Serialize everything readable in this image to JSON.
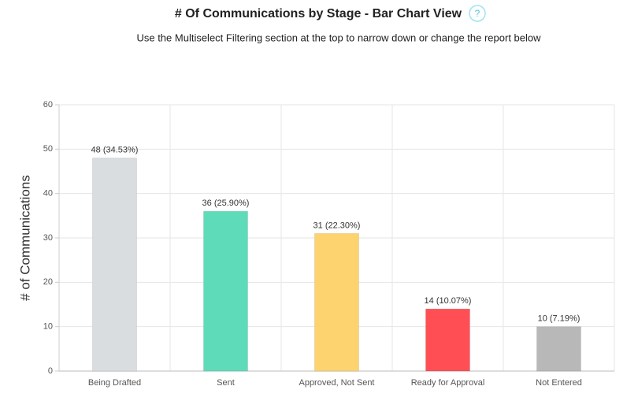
{
  "chart_data": {
    "type": "bar",
    "title": "# Of Communications by Stage - Bar Chart View",
    "subtitle": "Use the Multiselect Filtering section at the top to narrow down or change the report below",
    "y_label": "# of Communications",
    "categories": [
      "Being Drafted",
      "Sent",
      "Approved, Not Sent",
      "Ready for Approval",
      "Not Entered"
    ],
    "values": [
      48,
      36,
      31,
      14,
      10
    ],
    "value_labels": [
      "48 (34.53%)",
      "36 (25.90%)",
      "31 (22.30%)",
      "14 (10.07%)",
      "10 (7.19%)"
    ],
    "colors": [
      "#d9dde0",
      "#5edcb9",
      "#fdd36f",
      "#ff4f55",
      "#b8b8b8"
    ],
    "ylim": [
      0,
      60
    ],
    "yticks": [
      0,
      10,
      20,
      30,
      40,
      50,
      60
    ],
    "grid": true
  },
  "help_icon": "?"
}
